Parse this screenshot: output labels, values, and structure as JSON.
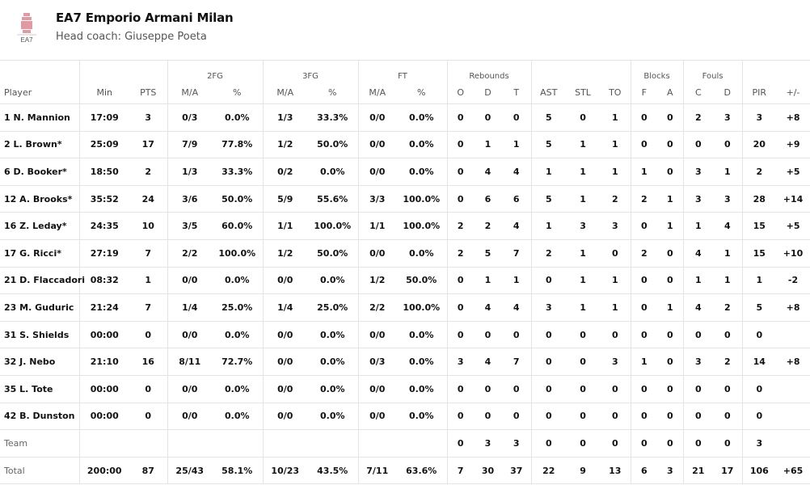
{
  "team": {
    "name": "EA7 Emporio Armani Milan",
    "coach": "Head coach: Giuseppe Poeta",
    "logo_text": "EA7",
    "logo_color": "#d9737f"
  },
  "groups": {
    "fg2": "2FG",
    "fg3": "3FG",
    "ft": "FT",
    "rebounds": "Rebounds",
    "blocks": "Blocks",
    "fouls": "Fouls"
  },
  "columns": [
    "Player",
    "Min",
    "PTS",
    "M/A",
    "%",
    "M/A",
    "%",
    "M/A",
    "%",
    "O",
    "D",
    "T",
    "AST",
    "STL",
    "TO",
    "F",
    "A",
    "C",
    "D",
    "PIR",
    "+/-"
  ],
  "rows": [
    [
      "1 N. Mannion",
      "17:09",
      "3",
      "0/3",
      "0.0%",
      "1/3",
      "33.3%",
      "0/0",
      "0.0%",
      "0",
      "0",
      "0",
      "5",
      "0",
      "1",
      "0",
      "0",
      "2",
      "3",
      "3",
      "+8"
    ],
    [
      "2 L. Brown*",
      "25:09",
      "17",
      "7/9",
      "77.8%",
      "1/2",
      "50.0%",
      "0/0",
      "0.0%",
      "0",
      "1",
      "1",
      "5",
      "1",
      "1",
      "0",
      "0",
      "0",
      "0",
      "20",
      "+9"
    ],
    [
      "6 D. Booker*",
      "18:50",
      "2",
      "1/3",
      "33.3%",
      "0/2",
      "0.0%",
      "0/0",
      "0.0%",
      "0",
      "4",
      "4",
      "1",
      "1",
      "1",
      "1",
      "0",
      "3",
      "1",
      "2",
      "+5"
    ],
    [
      "12 A. Brooks*",
      "35:52",
      "24",
      "3/6",
      "50.0%",
      "5/9",
      "55.6%",
      "3/3",
      "100.0%",
      "0",
      "6",
      "6",
      "5",
      "1",
      "2",
      "2",
      "1",
      "3",
      "3",
      "28",
      "+14"
    ],
    [
      "16 Z. Leday*",
      "24:35",
      "10",
      "3/5",
      "60.0%",
      "1/1",
      "100.0%",
      "1/1",
      "100.0%",
      "2",
      "2",
      "4",
      "1",
      "3",
      "3",
      "0",
      "1",
      "1",
      "4",
      "15",
      "+5"
    ],
    [
      "17 G. Ricci*",
      "27:19",
      "7",
      "2/2",
      "100.0%",
      "1/2",
      "50.0%",
      "0/0",
      "0.0%",
      "2",
      "5",
      "7",
      "2",
      "1",
      "0",
      "2",
      "0",
      "4",
      "1",
      "15",
      "+10"
    ],
    [
      "21 D. Flaccadori",
      "08:32",
      "1",
      "0/0",
      "0.0%",
      "0/0",
      "0.0%",
      "1/2",
      "50.0%",
      "0",
      "1",
      "1",
      "0",
      "1",
      "1",
      "0",
      "0",
      "1",
      "1",
      "1",
      "-2"
    ],
    [
      "23 M. Guduric",
      "21:24",
      "7",
      "1/4",
      "25.0%",
      "1/4",
      "25.0%",
      "2/2",
      "100.0%",
      "0",
      "4",
      "4",
      "3",
      "1",
      "1",
      "0",
      "1",
      "4",
      "2",
      "5",
      "+8"
    ],
    [
      "31 S. Shields",
      "00:00",
      "0",
      "0/0",
      "0.0%",
      "0/0",
      "0.0%",
      "0/0",
      "0.0%",
      "0",
      "0",
      "0",
      "0",
      "0",
      "0",
      "0",
      "0",
      "0",
      "0",
      "0",
      ""
    ],
    [
      "32 J. Nebo",
      "21:10",
      "16",
      "8/11",
      "72.7%",
      "0/0",
      "0.0%",
      "0/3",
      "0.0%",
      "3",
      "4",
      "7",
      "0",
      "0",
      "3",
      "1",
      "0",
      "3",
      "2",
      "14",
      "+8"
    ],
    [
      "35 L. Tote",
      "00:00",
      "0",
      "0/0",
      "0.0%",
      "0/0",
      "0.0%",
      "0/0",
      "0.0%",
      "0",
      "0",
      "0",
      "0",
      "0",
      "0",
      "0",
      "0",
      "0",
      "0",
      "0",
      ""
    ],
    [
      "42 B. Dunston",
      "00:00",
      "0",
      "0/0",
      "0.0%",
      "0/0",
      "0.0%",
      "0/0",
      "0.0%",
      "0",
      "0",
      "0",
      "0",
      "0",
      "0",
      "0",
      "0",
      "0",
      "0",
      "0",
      ""
    ],
    [
      "Team",
      "",
      "",
      "",
      "",
      "",
      "",
      "",
      "",
      "0",
      "3",
      "3",
      "0",
      "0",
      "0",
      "0",
      "0",
      "0",
      "0",
      "3",
      ""
    ],
    [
      "Total",
      "200:00",
      "87",
      "25/43",
      "58.1%",
      "10/23",
      "43.5%",
      "7/11",
      "63.6%",
      "7",
      "30",
      "37",
      "22",
      "9",
      "13",
      "6",
      "3",
      "21",
      "17",
      "106",
      "+65"
    ]
  ]
}
